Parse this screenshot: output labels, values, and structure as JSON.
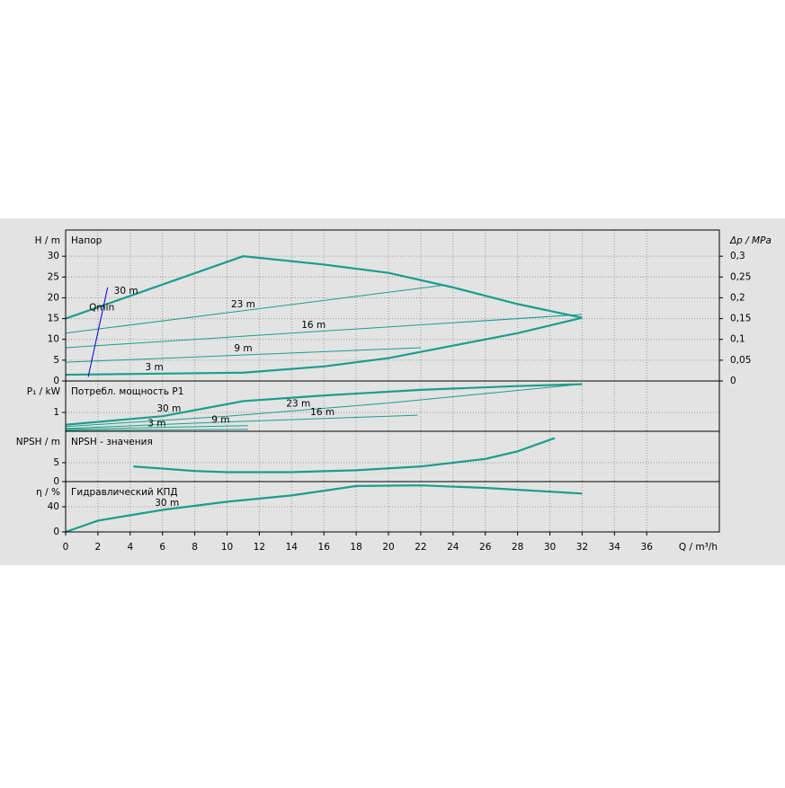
{
  "chart_data": [
    {
      "type": "line",
      "title": "Напор",
      "ylabel": "H / m",
      "y2label": "Δp / MPa",
      "xlim": [
        0,
        40.5
      ],
      "ylim": [
        0,
        36.3
      ],
      "yticks": [
        0,
        5,
        10,
        15,
        20,
        25,
        30
      ],
      "y2lim": [
        0,
        0.363
      ],
      "y2ticks": [
        0,
        {
          "value": 0.05,
          "label": "0,05"
        },
        {
          "value": 0.1,
          "label": "0,1"
        },
        {
          "value": 0.15,
          "label": "0,15"
        },
        {
          "value": 0.2,
          "label": "0,2"
        },
        {
          "value": 0.25,
          "label": "0,25"
        },
        {
          "value": 0.3,
          "label": "0,3"
        }
      ],
      "grid": true,
      "series": [
        {
          "name": "30 m",
          "color": "#1a9e8a",
          "x": [
            0,
            11,
            16,
            20,
            24,
            28,
            32
          ],
          "values": [
            15,
            30,
            28,
            26,
            22.5,
            18.5,
            15.2
          ]
        },
        {
          "name": "23 m",
          "color": "#1a9e8a",
          "x": [
            0,
            23.4
          ],
          "values": [
            11.5,
            23
          ]
        },
        {
          "name": "16 m",
          "color": "#1a9e8a",
          "x": [
            0,
            32
          ],
          "values": [
            8,
            16
          ]
        },
        {
          "name": "9 m",
          "color": "#1a9e8a",
          "x": [
            0,
            22
          ],
          "values": [
            4.5,
            8
          ]
        },
        {
          "name": "3 m",
          "color": "#1a9e8a",
          "x": [
            0,
            11,
            16,
            20,
            24,
            28,
            32
          ],
          "values": [
            1.5,
            2,
            3.5,
            5.5,
            8.5,
            11.5,
            15.2
          ]
        },
        {
          "name": "Qmin",
          "color": "#0000cc",
          "x": [
            1.4,
            2.6
          ],
          "values": [
            1,
            22.5
          ]
        }
      ]
    },
    {
      "type": "line",
      "title": "Потребл. мощность P1",
      "ylabel": "P₁ / kW",
      "xlim": [
        0,
        40.5
      ],
      "ylim": [
        0,
        2.67
      ],
      "yticks": [
        1
      ],
      "grid": true,
      "series": [
        {
          "name": "30 m",
          "color": "#1a9e8a",
          "x": [
            0,
            6,
            11,
            16,
            22,
            28,
            32
          ],
          "values": [
            0.35,
            0.8,
            1.6,
            1.9,
            2.2,
            2.4,
            2.5
          ]
        },
        {
          "name": "23 m",
          "color": "#1a9e8a",
          "x": [
            0,
            10,
            20,
            32
          ],
          "values": [
            0.25,
            0.8,
            1.5,
            2.5
          ]
        },
        {
          "name": "16 m",
          "color": "#1a9e8a",
          "x": [
            0,
            10,
            21.8
          ],
          "values": [
            0.15,
            0.5,
            0.85
          ]
        },
        {
          "name": "9 m",
          "color": "#1a9e8a",
          "x": [
            0,
            11.3
          ],
          "values": [
            0.1,
            0.3
          ]
        },
        {
          "name": "3 m",
          "color": "#1a9e8a",
          "x": [
            0,
            11.3
          ],
          "values": [
            0.05,
            0.1
          ]
        }
      ]
    },
    {
      "type": "line",
      "title": "NPSH - значения",
      "ylabel": "NPSH / m",
      "xlim": [
        0,
        40.5
      ],
      "ylim": [
        0,
        13.3
      ],
      "yticks": [
        0,
        5
      ],
      "grid": true,
      "series": [
        {
          "color": "#1a9e8a",
          "x": [
            4.2,
            8,
            10,
            14,
            18,
            22,
            26,
            28,
            30.3
          ],
          "values": [
            4,
            2.8,
            2.5,
            2.5,
            3,
            4,
            6,
            8,
            11.5
          ]
        }
      ]
    },
    {
      "type": "line",
      "title": "Гидравлический КПД",
      "ylabel": "η / %",
      "xlabel": "Q / m³/h",
      "xlim": [
        0,
        40.5
      ],
      "ylim": [
        0,
        80
      ],
      "yticks": [
        0,
        40
      ],
      "grid": true,
      "xticks": [
        0,
        2,
        4,
        6,
        8,
        10,
        12,
        14,
        16,
        18,
        20,
        22,
        24,
        26,
        28,
        30,
        32,
        34,
        36
      ],
      "series": [
        {
          "name": "30 m",
          "color": "#1a9e8a",
          "x": [
            0,
            2,
            6,
            10,
            14,
            18,
            22,
            26,
            30,
            32
          ],
          "values": [
            0,
            18,
            35,
            48,
            58,
            73,
            74,
            70,
            64,
            61
          ]
        }
      ]
    }
  ]
}
